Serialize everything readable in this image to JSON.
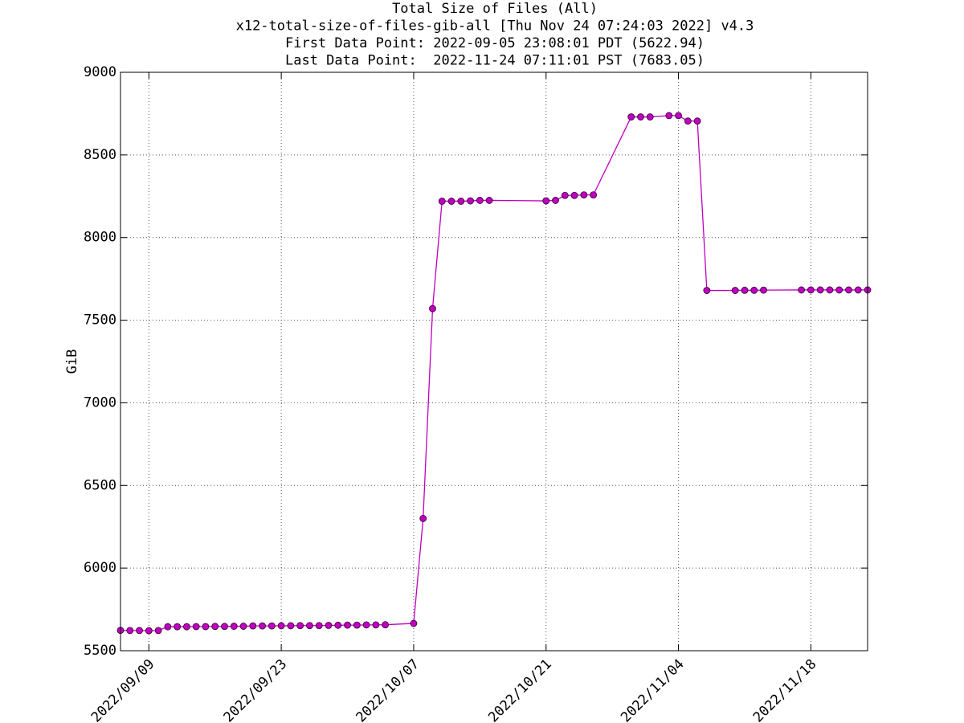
{
  "chart_data": {
    "type": "line",
    "title": [
      "Total Size of Files (All)",
      "x12-total-size-of-files-gib-all [Thu Nov 24 07:24:03 2022] v4.3",
      "First Data Point: 2022-09-05 23:08:01 PDT (5622.94)",
      "Last Data Point:  2022-11-24 07:11:01 PST (7683.05)"
    ],
    "y_label": "GiB",
    "x": [
      "2022-09-06",
      "2022-09-07",
      "2022-09-08",
      "2022-09-09",
      "2022-09-10",
      "2022-09-11",
      "2022-09-12",
      "2022-09-13",
      "2022-09-14",
      "2022-09-15",
      "2022-09-16",
      "2022-09-17",
      "2022-09-18",
      "2022-09-19",
      "2022-09-20",
      "2022-09-21",
      "2022-09-22",
      "2022-09-23",
      "2022-09-24",
      "2022-09-25",
      "2022-09-26",
      "2022-09-27",
      "2022-09-28",
      "2022-09-29",
      "2022-09-30",
      "2022-10-01",
      "2022-10-02",
      "2022-10-03",
      "2022-10-04",
      "2022-10-07",
      "2022-10-08",
      "2022-10-09",
      "2022-10-10",
      "2022-10-11",
      "2022-10-12",
      "2022-10-13",
      "2022-10-14",
      "2022-10-15",
      "2022-10-21",
      "2022-10-22",
      "2022-10-23",
      "2022-10-24",
      "2022-10-25",
      "2022-10-26",
      "2022-10-30",
      "2022-10-31",
      "2022-11-01",
      "2022-11-03",
      "2022-11-04",
      "2022-11-05",
      "2022-11-06",
      "2022-11-07",
      "2022-11-10",
      "2022-11-11",
      "2022-11-12",
      "2022-11-13",
      "2022-11-17",
      "2022-11-18",
      "2022-11-19",
      "2022-11-20",
      "2022-11-21",
      "2022-11-22",
      "2022-11-23",
      "2022-11-24"
    ],
    "series": [
      {
        "name": "GiB",
        "color": "#bf00bf",
        "values": [
          5623,
          5622,
          5622,
          5621,
          5622,
          5645,
          5645,
          5645,
          5646,
          5646,
          5647,
          5647,
          5648,
          5648,
          5650,
          5650,
          5650,
          5651,
          5651,
          5652,
          5652,
          5652,
          5653,
          5654,
          5655,
          5655,
          5656,
          5656,
          5657,
          5665,
          6300,
          7570,
          8220,
          8220,
          8220,
          8222,
          8225,
          8225,
          8222,
          8225,
          8255,
          8255,
          8258,
          8258,
          8730,
          8730,
          8730,
          8738,
          8738,
          8705,
          8705,
          7680,
          7680,
          7681,
          7681,
          7682,
          7683,
          7683,
          7683,
          7683,
          7683,
          7683,
          7683,
          7683
        ]
      }
    ],
    "xlim": [
      "2022-09-06",
      "2022-11-24"
    ],
    "xticks": [
      {
        "value": "2022-09-09",
        "label": "2022/09/09"
      },
      {
        "value": "2022-09-23",
        "label": "2022/09/23"
      },
      {
        "value": "2022-10-07",
        "label": "2022/10/07"
      },
      {
        "value": "2022-10-21",
        "label": "2022/10/21"
      },
      {
        "value": "2022-11-04",
        "label": "2022/11/04"
      },
      {
        "value": "2022-11-18",
        "label": "2022/11/18"
      }
    ],
    "ylim": [
      5500,
      9000
    ],
    "yticks": [
      5500,
      6000,
      6500,
      7000,
      7500,
      8000,
      8500,
      9000
    ],
    "grid": true
  }
}
